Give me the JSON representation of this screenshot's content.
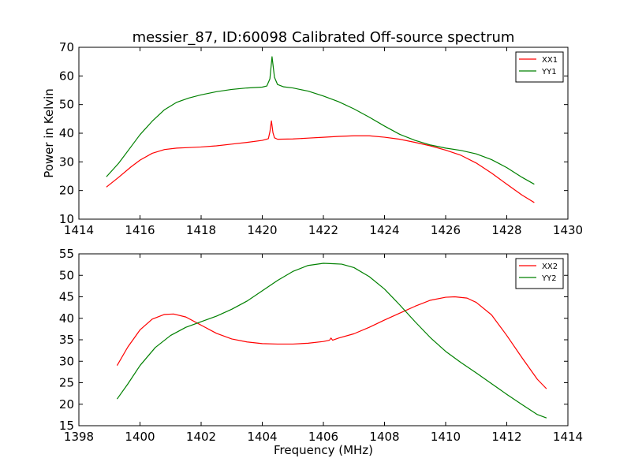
{
  "figure": {
    "title": "messier_87, ID:60098 Calibrated Off-source spectrum",
    "background": "#ffffff"
  },
  "chart_data": [
    {
      "type": "line",
      "title": "messier_87, ID:60098 Calibrated Off-source spectrum",
      "xlabel": "",
      "ylabel": "Power in Kelvin",
      "xlim": [
        1414,
        1430
      ],
      "ylim": [
        10,
        70
      ],
      "xticks": [
        1414,
        1416,
        1418,
        1420,
        1422,
        1424,
        1426,
        1428,
        1430
      ],
      "yticks": [
        10,
        20,
        30,
        40,
        50,
        60,
        70
      ],
      "grid": false,
      "legend": "top-right",
      "series": [
        {
          "name": "XX1",
          "color": "#ff0000",
          "x": [
            1414.9,
            1415.3,
            1415.7,
            1416.0,
            1416.4,
            1416.8,
            1417.2,
            1417.6,
            1418.0,
            1418.5,
            1419.0,
            1419.5,
            1420.0,
            1420.2,
            1420.25,
            1420.3,
            1420.35,
            1420.4,
            1420.5,
            1421.0,
            1421.5,
            1422.0,
            1422.5,
            1423.0,
            1423.5,
            1424.0,
            1424.5,
            1425.0,
            1425.5,
            1426.0,
            1426.5,
            1427.0,
            1427.5,
            1428.0,
            1428.5,
            1428.9
          ],
          "y": [
            21.2,
            24.6,
            28.2,
            30.6,
            33.0,
            34.3,
            34.8,
            35.0,
            35.2,
            35.6,
            36.2,
            36.8,
            37.5,
            38.1,
            40.5,
            44.3,
            40.2,
            38.4,
            37.9,
            38.0,
            38.3,
            38.6,
            38.9,
            39.1,
            39.1,
            38.6,
            37.9,
            36.8,
            35.6,
            34.1,
            32.3,
            29.6,
            26.1,
            22.2,
            18.4,
            15.8
          ]
        },
        {
          "name": "YY1",
          "color": "#008000",
          "x": [
            1414.9,
            1415.3,
            1415.7,
            1416.0,
            1416.4,
            1416.8,
            1417.2,
            1417.6,
            1418.0,
            1418.5,
            1419.0,
            1419.5,
            1420.0,
            1420.15,
            1420.25,
            1420.32,
            1420.4,
            1420.5,
            1420.7,
            1421.0,
            1421.5,
            1422.0,
            1422.5,
            1423.0,
            1423.5,
            1424.0,
            1424.5,
            1425.0,
            1425.5,
            1426.0,
            1426.5,
            1427.0,
            1427.5,
            1428.0,
            1428.5,
            1428.9
          ],
          "y": [
            24.8,
            29.5,
            35.2,
            39.5,
            44.2,
            48.2,
            50.8,
            52.3,
            53.4,
            54.5,
            55.3,
            55.8,
            56.1,
            56.5,
            59.0,
            66.7,
            59.5,
            57.0,
            56.2,
            55.8,
            54.7,
            53.0,
            51.0,
            48.5,
            45.6,
            42.5,
            39.6,
            37.5,
            35.9,
            34.8,
            34.0,
            32.8,
            30.8,
            28.0,
            24.6,
            22.2
          ]
        }
      ]
    },
    {
      "type": "line",
      "title": "",
      "xlabel": "Frequency (MHz)",
      "ylabel": "",
      "xlim": [
        1398,
        1414
      ],
      "ylim": [
        15,
        55
      ],
      "xticks": [
        1398,
        1400,
        1402,
        1404,
        1406,
        1408,
        1410,
        1412,
        1414
      ],
      "yticks": [
        15,
        20,
        25,
        30,
        35,
        40,
        45,
        50,
        55
      ],
      "grid": false,
      "legend": "top-right",
      "series": [
        {
          "name": "XX2",
          "color": "#ff0000",
          "x": [
            1399.25,
            1399.6,
            1400.0,
            1400.4,
            1400.8,
            1401.1,
            1401.5,
            1402.0,
            1402.5,
            1403.0,
            1403.5,
            1404.0,
            1404.5,
            1405.0,
            1405.5,
            1406.0,
            1406.2,
            1406.25,
            1406.3,
            1406.5,
            1407.0,
            1407.5,
            1408.0,
            1408.5,
            1409.0,
            1409.5,
            1410.0,
            1410.3,
            1410.7,
            1411.0,
            1411.5,
            1412.0,
            1412.5,
            1413.0,
            1413.3
          ],
          "y": [
            29.0,
            33.3,
            37.3,
            39.8,
            40.9,
            41.0,
            40.3,
            38.4,
            36.5,
            35.2,
            34.5,
            34.1,
            34.0,
            34.0,
            34.2,
            34.6,
            34.9,
            35.4,
            34.9,
            35.4,
            36.4,
            37.9,
            39.6,
            41.2,
            42.8,
            44.2,
            44.9,
            45.0,
            44.7,
            43.7,
            40.8,
            36.0,
            30.8,
            25.8,
            23.6
          ]
        },
        {
          "name": "YY2",
          "color": "#008000",
          "x": [
            1399.25,
            1399.6,
            1400.0,
            1400.5,
            1401.0,
            1401.5,
            1402.0,
            1402.5,
            1403.0,
            1403.5,
            1404.0,
            1404.5,
            1405.0,
            1405.5,
            1406.0,
            1406.3,
            1406.6,
            1407.0,
            1407.5,
            1408.0,
            1408.5,
            1409.0,
            1409.5,
            1410.0,
            1410.5,
            1411.0,
            1411.5,
            1412.0,
            1412.5,
            1413.0,
            1413.3
          ],
          "y": [
            21.2,
            24.7,
            29.0,
            33.2,
            36.0,
            37.9,
            39.2,
            40.5,
            42.1,
            44.0,
            46.4,
            48.8,
            50.9,
            52.3,
            52.8,
            52.7,
            52.6,
            51.8,
            49.7,
            46.8,
            43.1,
            39.2,
            35.5,
            32.3,
            29.7,
            27.3,
            24.8,
            22.3,
            19.9,
            17.6,
            16.8
          ]
        }
      ]
    }
  ]
}
